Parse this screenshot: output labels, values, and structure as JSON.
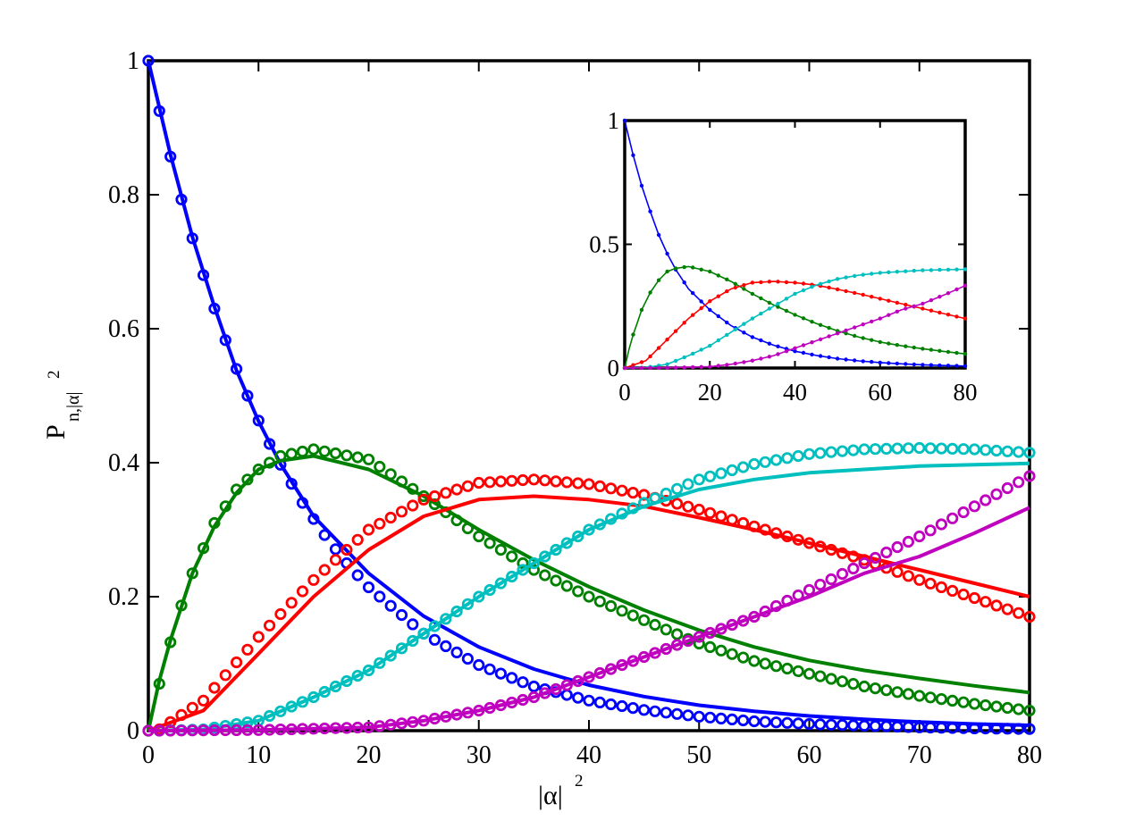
{
  "chart_data": [
    {
      "type": "line",
      "role": "main",
      "xlabel": {
        "base": "|α|",
        "sup": "2"
      },
      "ylabel": {
        "base": "P",
        "sub": "n,|α|",
        "sup": "2"
      },
      "xlim": [
        0,
        80
      ],
      "ylim": [
        0,
        1
      ],
      "xticks": [
        "0",
        "10",
        "20",
        "30",
        "40",
        "50",
        "60",
        "70",
        "80"
      ],
      "yticks": [
        "0",
        "0.2",
        "0.4",
        "0.6",
        "0.8",
        "1"
      ],
      "grid": false,
      "legend": "none",
      "markers": "open circles at every integer x from 0 to 80 (red and cyan markers from 1), solid lines for the model curves",
      "series": [
        {
          "color": "#0000ff",
          "line": {
            "x": [
              0,
              2,
              4,
              6,
              8,
              10,
              12,
              15,
              20,
              25,
              30,
              35,
              40,
              45,
              50,
              55,
              60,
              65,
              70,
              75,
              80
            ],
            "y": [
              1.0,
              0.86,
              0.737,
              0.633,
              0.538,
              0.462,
              0.398,
              0.32,
              0.235,
              0.171,
              0.125,
              0.092,
              0.068,
              0.051,
              0.038,
              0.029,
              0.022,
              0.017,
              0.013,
              0.01,
              0.008
            ]
          },
          "markers": {
            "x": [
              0,
              1,
              2,
              3,
              4,
              5,
              6,
              7,
              8,
              9,
              10,
              11,
              12,
              14,
              16,
              18,
              20,
              25,
              30,
              35,
              40,
              45,
              50,
              55,
              60,
              65,
              70,
              75,
              80
            ],
            "y": [
              1.0,
              0.925,
              0.857,
              0.793,
              0.735,
              0.68,
              0.63,
              0.583,
              0.54,
              0.5,
              0.463,
              0.428,
              0.397,
              0.34,
              0.292,
              0.25,
              0.214,
              0.145,
              0.098,
              0.066,
              0.045,
              0.031,
              0.021,
              0.014,
              0.01,
              0.0075,
              0.005,
              0.0035,
              0.0025
            ]
          }
        },
        {
          "color": "#008000",
          "line": {
            "x": [
              0,
              1,
              2,
              3,
              4,
              6,
              8,
              10,
              12,
              15,
              20,
              25,
              30,
              35,
              40,
              45,
              50,
              55,
              60,
              65,
              70,
              75,
              80
            ],
            "y": [
              0,
              0.075,
              0.135,
              0.185,
              0.235,
              0.305,
              0.355,
              0.39,
              0.403,
              0.41,
              0.39,
              0.35,
              0.3,
              0.255,
              0.215,
              0.18,
              0.15,
              0.125,
              0.105,
              0.09,
              0.078,
              0.067,
              0.057
            ]
          },
          "markers": {
            "x": [
              0,
              1,
              2,
              3,
              4,
              6,
              8,
              10,
              12,
              15,
              20,
              25,
              30,
              35,
              40,
              45,
              50,
              55,
              60,
              65,
              70,
              75,
              80
            ],
            "y": [
              0,
              0.07,
              0.132,
              0.187,
              0.235,
              0.31,
              0.36,
              0.39,
              0.41,
              0.42,
              0.405,
              0.35,
              0.29,
              0.24,
              0.2,
              0.165,
              0.13,
              0.104,
              0.085,
              0.066,
              0.052,
              0.04,
              0.03
            ]
          }
        },
        {
          "color": "#ff0000",
          "line": {
            "x": [
              0,
              5,
              10,
              15,
              20,
              25,
              30,
              35,
              40,
              45,
              50,
              55,
              60,
              65,
              70,
              75,
              80
            ],
            "y": [
              0,
              0.03,
              0.115,
              0.2,
              0.27,
              0.32,
              0.345,
              0.35,
              0.345,
              0.335,
              0.318,
              0.3,
              0.28,
              0.26,
              0.24,
              0.22,
              0.2
            ]
          },
          "markers": {
            "x": [
              1,
              5,
              10,
              15,
              20,
              25,
              30,
              35,
              40,
              45,
              50,
              55,
              60,
              65,
              70,
              75,
              80
            ],
            "y": [
              0.002,
              0.045,
              0.14,
              0.225,
              0.3,
              0.345,
              0.37,
              0.375,
              0.368,
              0.352,
              0.33,
              0.305,
              0.28,
              0.255,
              0.225,
              0.198,
              0.17
            ]
          }
        },
        {
          "color": "#00bfbf",
          "line": {
            "x": [
              0,
              5,
              10,
              15,
              20,
              25,
              30,
              35,
              40,
              45,
              50,
              55,
              60,
              65,
              70,
              75,
              80
            ],
            "y": [
              0,
              0.002,
              0.015,
              0.05,
              0.09,
              0.145,
              0.2,
              0.25,
              0.3,
              0.335,
              0.36,
              0.375,
              0.385,
              0.39,
              0.395,
              0.397,
              0.399
            ]
          },
          "markers": {
            "x": [
              1,
              5,
              10,
              15,
              20,
              25,
              30,
              35,
              40,
              45,
              50,
              55,
              60,
              65,
              70,
              75,
              80
            ],
            "y": [
              0,
              0.002,
              0.015,
              0.05,
              0.09,
              0.145,
              0.2,
              0.25,
              0.3,
              0.34,
              0.375,
              0.398,
              0.413,
              0.42,
              0.422,
              0.42,
              0.415
            ]
          }
        },
        {
          "color": "#bf00bf",
          "line": {
            "x": [
              0,
              10,
              20,
              25,
              30,
              35,
              40,
              45,
              50,
              55,
              60,
              65,
              70,
              75,
              80
            ],
            "y": [
              0,
              0.001,
              0.005,
              0.015,
              0.03,
              0.05,
              0.08,
              0.11,
              0.14,
              0.17,
              0.2,
              0.235,
              0.26,
              0.295,
              0.333
            ]
          },
          "markers": {
            "x": [
              0,
              10,
              20,
              25,
              30,
              35,
              40,
              45,
              50,
              55,
              60,
              65,
              70,
              75,
              80
            ],
            "y": [
              0,
              0.001,
              0.005,
              0.015,
              0.03,
              0.05,
              0.08,
              0.11,
              0.14,
              0.17,
              0.21,
              0.25,
              0.29,
              0.335,
              0.38
            ]
          }
        }
      ]
    },
    {
      "type": "line",
      "role": "inset",
      "xlim": [
        0,
        80
      ],
      "ylim": [
        0,
        1
      ],
      "xticks": [
        "0",
        "20",
        "40",
        "60",
        "80"
      ],
      "yticks": [
        "0",
        "0.5",
        "1"
      ],
      "grid": false,
      "legend": "none",
      "placement": "top-right",
      "markers": "small filled dots on each curve",
      "series": [
        {
          "color": "#0000ff",
          "x": [
            0,
            2,
            4,
            6,
            8,
            10,
            12,
            15,
            20,
            25,
            30,
            35,
            40,
            45,
            50,
            55,
            60,
            65,
            70,
            75,
            80
          ],
          "y": [
            1.0,
            0.86,
            0.737,
            0.633,
            0.538,
            0.462,
            0.398,
            0.32,
            0.235,
            0.171,
            0.125,
            0.092,
            0.068,
            0.051,
            0.038,
            0.029,
            0.022,
            0.017,
            0.013,
            0.01,
            0.008
          ]
        },
        {
          "color": "#008000",
          "x": [
            0,
            1,
            2,
            3,
            4,
            6,
            8,
            10,
            12,
            15,
            20,
            25,
            30,
            35,
            40,
            45,
            50,
            55,
            60,
            65,
            70,
            75,
            80
          ],
          "y": [
            0,
            0.075,
            0.135,
            0.185,
            0.235,
            0.305,
            0.355,
            0.39,
            0.403,
            0.41,
            0.39,
            0.35,
            0.3,
            0.255,
            0.215,
            0.18,
            0.15,
            0.125,
            0.105,
            0.09,
            0.078,
            0.067,
            0.057
          ]
        },
        {
          "color": "#ff0000",
          "x": [
            0,
            5,
            10,
            15,
            20,
            25,
            30,
            35,
            40,
            45,
            50,
            55,
            60,
            65,
            70,
            75,
            80
          ],
          "y": [
            0,
            0.03,
            0.115,
            0.2,
            0.27,
            0.32,
            0.345,
            0.35,
            0.345,
            0.335,
            0.318,
            0.3,
            0.28,
            0.26,
            0.24,
            0.22,
            0.2
          ]
        },
        {
          "color": "#00bfbf",
          "x": [
            0,
            5,
            10,
            15,
            20,
            25,
            30,
            35,
            40,
            45,
            50,
            55,
            60,
            65,
            70,
            75,
            80
          ],
          "y": [
            0,
            0.002,
            0.015,
            0.05,
            0.09,
            0.145,
            0.2,
            0.25,
            0.3,
            0.335,
            0.36,
            0.375,
            0.385,
            0.39,
            0.395,
            0.397,
            0.399
          ]
        },
        {
          "color": "#bf00bf",
          "x": [
            0,
            10,
            20,
            25,
            30,
            35,
            40,
            45,
            50,
            55,
            60,
            65,
            70,
            75,
            80
          ],
          "y": [
            0,
            0.001,
            0.005,
            0.015,
            0.03,
            0.05,
            0.08,
            0.11,
            0.14,
            0.17,
            0.2,
            0.235,
            0.26,
            0.295,
            0.333
          ]
        }
      ]
    }
  ]
}
